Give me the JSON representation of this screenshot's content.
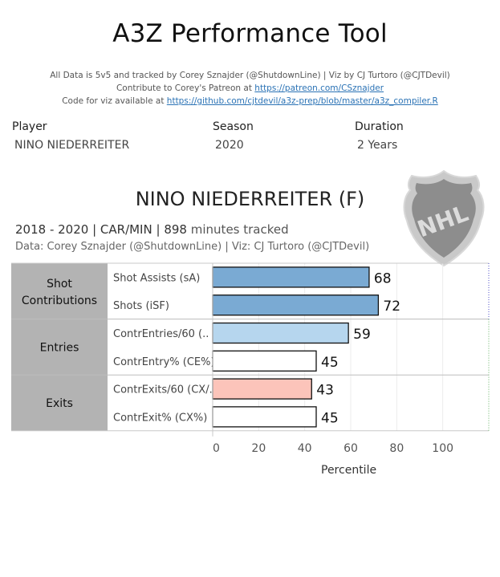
{
  "title": "A3Z Performance Tool",
  "credits": {
    "line1": "All Data is 5v5 and tracked by Corey Sznajder (@ShutdownLine) | Viz by CJ Turtoro (@CJTDevil)",
    "line2_prefix": "Contribute to Corey's Patreon at ",
    "line2_link": "https://patreon.com/CSznajder",
    "line3_prefix": "Code for viz available at ",
    "line3_link": "https://github.com/cjtdevil/a3z-prep/blob/master/a3z_compiler.R"
  },
  "filters": {
    "player": {
      "label": "Player",
      "value": "NINO NIEDERREITER"
    },
    "season": {
      "label": "Season",
      "value": "2020"
    },
    "duration": {
      "label": "Duration",
      "value": "2 Years"
    }
  },
  "player_name": "NINO NIEDERREITER (F)",
  "subtitle": {
    "years": "2018 - 2020 |",
    "teams": "CAR/MIN",
    "sep": "|",
    "minutes": "898",
    "minutes_suffix": "minutes tracked"
  },
  "data_source": "Data: Corey Sznajder (@ShutdownLine) | Viz: CJ Turtoro (@CJTDevil)",
  "logo_text": "NHL",
  "chart_data": {
    "type": "bar",
    "orientation": "horizontal",
    "xlabel": "Percentile",
    "xlim": [
      0,
      120
    ],
    "xticks": [
      0,
      20,
      40,
      60,
      80,
      100
    ],
    "groups": [
      {
        "name": "Shot Contributions",
        "color": "#7aaad3",
        "items": [
          {
            "label": "Shot Assists (sA)",
            "value": 68
          },
          {
            "label": "Shots (iSF)",
            "value": 72
          }
        ]
      },
      {
        "name": "Entries",
        "items": [
          {
            "label": "ContrEntries/60 (..",
            "value": 59,
            "color": "#b6d6ee"
          },
          {
            "label": "ContrEntry% (CE%)",
            "value": 45,
            "color": "#ffffff"
          }
        ]
      },
      {
        "name": "Exits",
        "items": [
          {
            "label": "ContrExits/60 (CX/..",
            "value": 43,
            "color": "#fcc4ba"
          },
          {
            "label": "ContrExit% (CX%)",
            "value": 45,
            "color": "#ffffff"
          }
        ]
      }
    ]
  }
}
